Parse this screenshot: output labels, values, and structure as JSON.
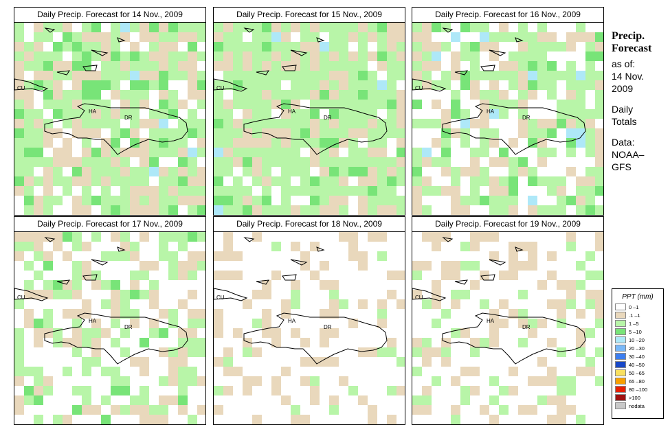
{
  "panels": [
    {
      "title": "Daily Precip. Forecast for  14 Nov., 2009"
    },
    {
      "title": "Daily Precip. Forecast for  15 Nov., 2009"
    },
    {
      "title": "Daily Precip. Forecast for  16 Nov., 2009"
    },
    {
      "title": "Daily Precip. Forecast for  17 Nov., 2009"
    },
    {
      "title": "Daily Precip. Forecast for  18 Nov., 2009"
    },
    {
      "title": "Daily Precip. Forecast for  19 Nov., 2009"
    }
  ],
  "map_labels": {
    "cu": "CU",
    "ha": "HA",
    "dr": "DR"
  },
  "sidebar": {
    "title1": "Precip.",
    "title2": "Forecast",
    "asof": "as of:",
    "date1": "14 Nov.",
    "date2": "2009",
    "daily1": "Daily",
    "daily2": "Totals",
    "data1": "Data:",
    "data2": "NOAA–",
    "data3": "GFS"
  },
  "legend": {
    "title": "PPT (mm)",
    "items": [
      {
        "range": "0 –1",
        "color": "#ffffff"
      },
      {
        "range": ".1 –1",
        "color": "#e9d8bc"
      },
      {
        "range": "1 –5",
        "color": "#b8f5a8"
      },
      {
        "range": "5 –10",
        "color": "#78e478"
      },
      {
        "range": "10 –20",
        "color": "#aee8f8"
      },
      {
        "range": "20 –30",
        "color": "#78b8f8"
      },
      {
        "range": "30 –40",
        "color": "#3c7ef0"
      },
      {
        "range": "40 –50",
        "color": "#1848c8"
      },
      {
        "range": "50 –65",
        "color": "#f8e060"
      },
      {
        "range": "65 –80",
        "color": "#f8a000"
      },
      {
        "range": "80 –100",
        "color": "#e82000"
      },
      {
        "range": ">100",
        "color": "#a01010"
      },
      {
        "range": "nodata",
        "color": "#c8c8c8"
      }
    ]
  }
}
